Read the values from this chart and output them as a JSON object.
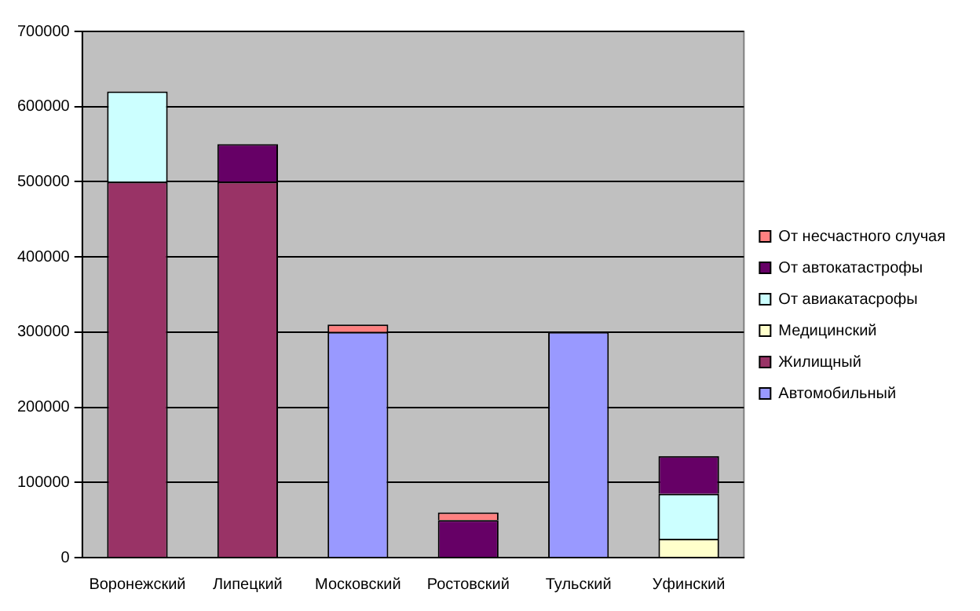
{
  "chart_data": {
    "type": "bar",
    "stacked": true,
    "categories": [
      "Воронежский",
      "Липецкий",
      "Московский",
      "Ростовский",
      "Тульский",
      "Уфинский"
    ],
    "series": [
      {
        "name": "Автомобильный",
        "color": "#9999ff",
        "values": [
          null,
          null,
          300000,
          null,
          300000,
          null
        ]
      },
      {
        "name": "Жилищный",
        "color": "#993366",
        "values": [
          500000,
          500000,
          null,
          null,
          null,
          null
        ]
      },
      {
        "name": "Медицинский",
        "color": "#ffffcc",
        "values": [
          null,
          null,
          null,
          null,
          null,
          25000
        ]
      },
      {
        "name": "От авиакатасрофы",
        "color": "#ccffff",
        "values": [
          120000,
          null,
          null,
          null,
          null,
          60000
        ]
      },
      {
        "name": "От автокатастрофы",
        "color": "#660066",
        "values": [
          null,
          50000,
          null,
          50000,
          null,
          50000
        ]
      },
      {
        "name": "От несчастного случая",
        "color": "#ff8080",
        "values": [
          null,
          null,
          10000,
          10000,
          null,
          null
        ]
      }
    ],
    "ylim": [
      0,
      700000
    ],
    "yticks": [
      0,
      100000,
      200000,
      300000,
      400000,
      500000,
      600000,
      700000
    ],
    "grid": "y",
    "legend": "right"
  }
}
